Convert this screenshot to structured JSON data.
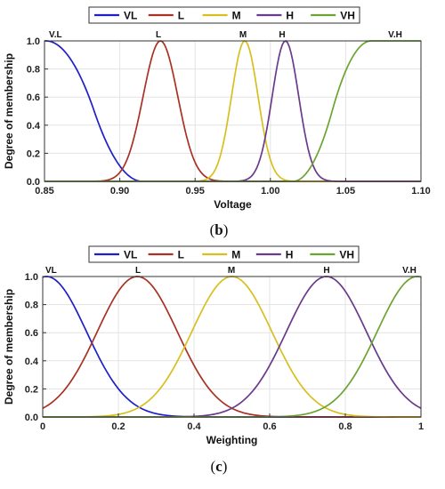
{
  "chart_data": [
    {
      "type": "line",
      "panel": "b",
      "caption": "(b)",
      "xlabel": "Voltage",
      "ylabel": "Degree of membership",
      "xlim": [
        0.85,
        1.1
      ],
      "ylim": [
        0,
        1.0
      ],
      "xticks": [
        "0.85",
        "0.90",
        "0.95",
        "1.00",
        "1.05",
        "1.10"
      ],
      "yticks": [
        "0.0",
        "0.2",
        "0.4",
        "0.6",
        "0.8",
        "1.0"
      ],
      "grid": true,
      "legend_position": "top-center",
      "curve_labels": [
        "V.L",
        "L",
        "M",
        "H",
        "V.H"
      ],
      "series": [
        {
          "name": "VL",
          "color": "#1f1fc8",
          "shape": "zmf",
          "params": [
            0.851,
            0.915
          ]
        },
        {
          "name": "L",
          "color": "#a83224",
          "shape": "gauss",
          "params": [
            0.927,
            0.0115
          ]
        },
        {
          "name": "M",
          "color": "#d8bf1f",
          "shape": "gauss",
          "params": [
            0.983,
            0.0088
          ]
        },
        {
          "name": "H",
          "color": "#6a3a8c",
          "shape": "gauss",
          "params": [
            1.01,
            0.0088
          ]
        },
        {
          "name": "VH",
          "color": "#6ca431",
          "shape": "smf",
          "params": [
            1.015,
            1.067
          ]
        }
      ]
    },
    {
      "type": "line",
      "panel": "c",
      "caption": "(c)",
      "xlabel": "Weighting",
      "ylabel": "Degree of membership",
      "xlim": [
        0,
        1
      ],
      "ylim": [
        0,
        1.0
      ],
      "xticks": [
        "0",
        "0.2",
        "0.4",
        "0.6",
        "0.8",
        "1"
      ],
      "yticks": [
        "0.0",
        "0.2",
        "0.4",
        "0.6",
        "0.8",
        "1.0"
      ],
      "grid": true,
      "legend_position": "top-center",
      "curve_labels": [
        "VL",
        "L",
        "M",
        "H",
        "V.H"
      ],
      "series": [
        {
          "name": "VL",
          "color": "#1f1fc8",
          "shape": "gauss",
          "params": [
            0.01,
            0.106
          ]
        },
        {
          "name": "L",
          "color": "#a83224",
          "shape": "gauss",
          "params": [
            0.25,
            0.106
          ]
        },
        {
          "name": "M",
          "color": "#d8bf1f",
          "shape": "gauss",
          "params": [
            0.5,
            0.106
          ]
        },
        {
          "name": "H",
          "color": "#6a3a8c",
          "shape": "gauss",
          "params": [
            0.75,
            0.106
          ]
        },
        {
          "name": "VH",
          "color": "#6ca431",
          "shape": "gauss",
          "params": [
            0.99,
            0.106
          ]
        }
      ]
    }
  ]
}
